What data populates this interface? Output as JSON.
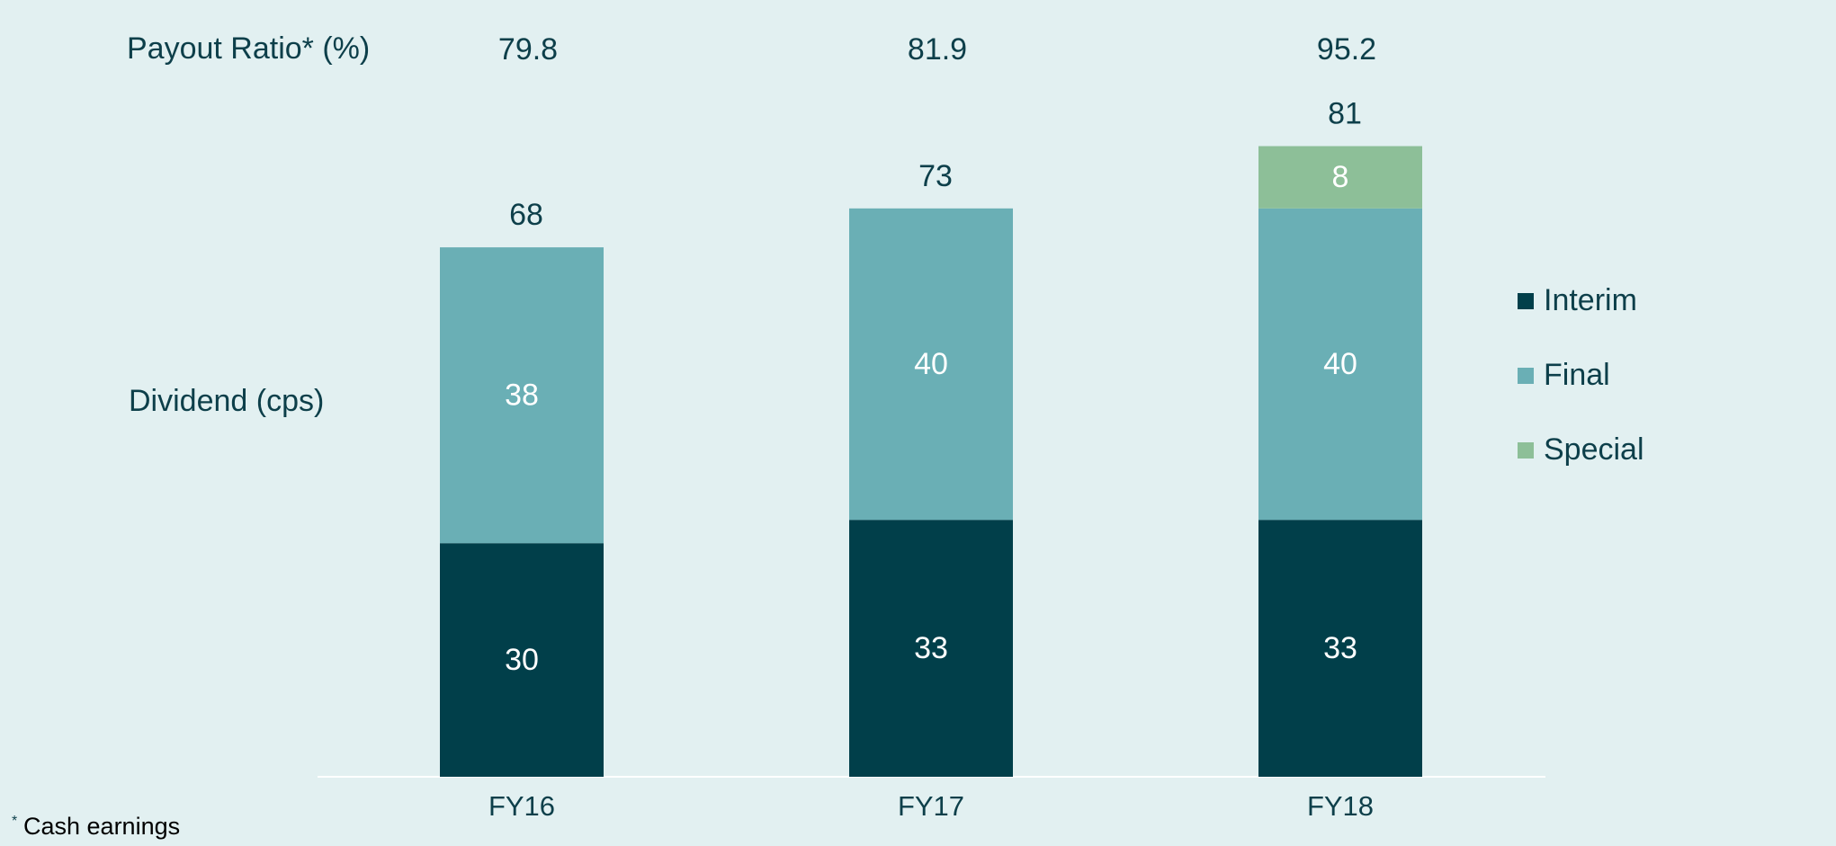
{
  "chart_data": {
    "type": "stacked_bar",
    "categories": [
      "FY16",
      "FY17",
      "FY18"
    ],
    "series": [
      {
        "name": "Interim",
        "color": "#013f4a",
        "values": [
          30,
          33,
          33
        ]
      },
      {
        "name": "Final",
        "color": "#6aafb5",
        "values": [
          38,
          40,
          40
        ]
      },
      {
        "name": "Special",
        "color": "#8dbf98",
        "values": [
          null,
          null,
          8
        ]
      }
    ],
    "totals": [
      68,
      73,
      81
    ],
    "payout_ratio": {
      "label": "Payout Ratio* (%)",
      "values": [
        79.8,
        81.9,
        95.2
      ]
    },
    "value_axis_label": "Dividend (cps)",
    "ylim": [
      0,
      100
    ],
    "legend": "right",
    "footnote": {
      "marker": "*",
      "text": "Cash earnings"
    }
  }
}
